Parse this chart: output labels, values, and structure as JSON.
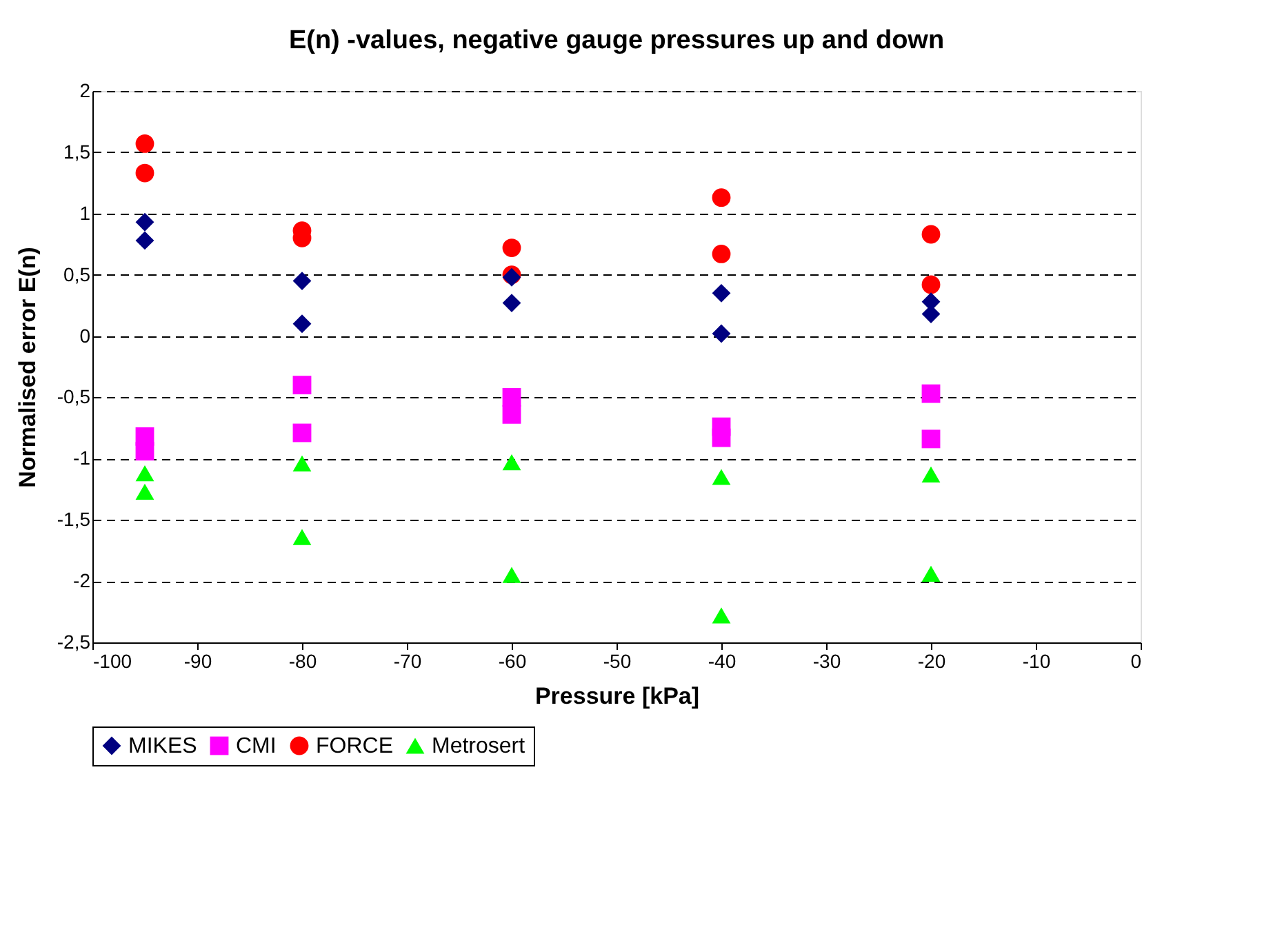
{
  "chart_data": {
    "type": "scatter",
    "title": "E(n) -values, negative gauge pressures up and down",
    "xlabel": "Pressure [kPa]",
    "ylabel": "Normalised error E(n)",
    "xlim": [
      -100,
      0
    ],
    "xticks": [
      -100,
      -90,
      -80,
      -70,
      -60,
      -50,
      -40,
      -30,
      -20,
      -10,
      0
    ],
    "ylim": [
      -2.5,
      2
    ],
    "yticks": [
      {
        "value": -2.5,
        "label": "-2,5"
      },
      -2,
      {
        "value": -1.5,
        "label": "-1,5"
      },
      -1,
      {
        "value": -0.5,
        "label": "-0,5"
      },
      0,
      {
        "value": 0.5,
        "label": "0,5"
      },
      1,
      {
        "value": 1.5,
        "label": "1,5"
      },
      2
    ],
    "grid": "y",
    "legend": "bottom",
    "series": [
      {
        "name": "MIKES",
        "color": "#000080",
        "marker": "diamond",
        "x": [
          -95,
          -95,
          -80,
          -80,
          -60,
          -60,
          -40,
          -40,
          -20,
          -20
        ],
        "values": [
          0.93,
          0.78,
          0.45,
          0.1,
          0.48,
          0.27,
          0.35,
          0.02,
          0.28,
          0.18
        ]
      },
      {
        "name": "CMI",
        "color": "#ff00ff",
        "marker": "square",
        "x": [
          -95,
          -95,
          -80,
          -80,
          -60,
          -60,
          -40,
          -40,
          -20,
          -20
        ],
        "values": [
          -0.82,
          -0.94,
          -0.4,
          -0.79,
          -0.5,
          -0.64,
          -0.74,
          -0.83,
          -0.47,
          -0.84
        ]
      },
      {
        "name": "FORCE",
        "color": "#ff0000",
        "marker": "circle",
        "x": [
          -95,
          -95,
          -80,
          -80,
          -60,
          -60,
          -40,
          -40,
          -20,
          -20
        ],
        "values": [
          1.57,
          1.33,
          0.86,
          0.8,
          0.72,
          0.5,
          1.13,
          0.67,
          0.83,
          0.42
        ]
      },
      {
        "name": "Metrosert",
        "color": "#00ff00",
        "marker": "triangle",
        "x": [
          -95,
          -95,
          -80,
          -80,
          -60,
          -60,
          -40,
          -40,
          -20,
          -20
        ],
        "values": [
          -1.12,
          -1.27,
          -1.04,
          -1.64,
          -1.03,
          -1.95,
          -1.15,
          -2.28,
          -1.13,
          -1.94
        ]
      }
    ]
  }
}
